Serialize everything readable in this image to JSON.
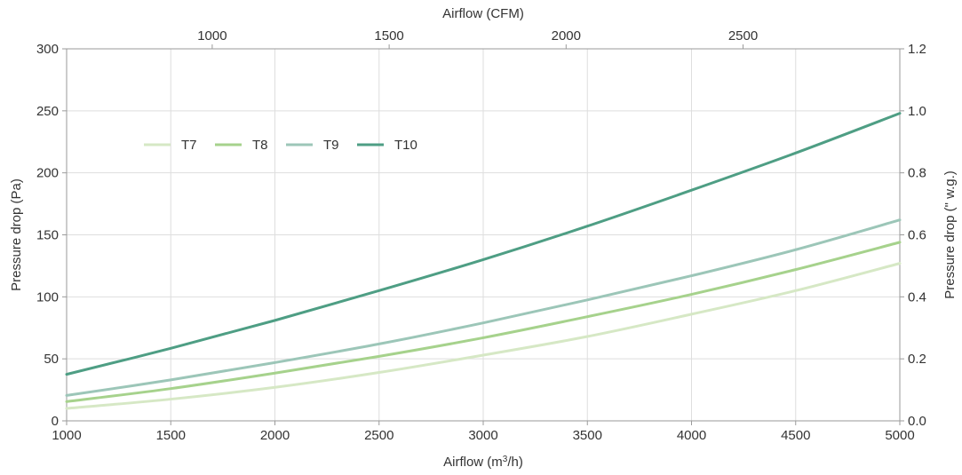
{
  "chart_data": {
    "type": "line",
    "x_axis": {
      "label_prefix": "Airflow (m",
      "label_sup": "3",
      "label_suffix": "/h)",
      "range": [
        1000,
        5000
      ],
      "ticks": [
        1000,
        1500,
        2000,
        2500,
        3000,
        3500,
        4000,
        4500,
        5000
      ]
    },
    "x2_axis": {
      "label": "Airflow (CFM)",
      "factor_from_primary": 0.5886,
      "ticks": [
        1000,
        1500,
        2000,
        2500
      ]
    },
    "y_axis": {
      "label": "Pressure drop (Pa)",
      "range": [
        0,
        300
      ],
      "ticks": [
        0,
        50,
        100,
        150,
        200,
        250,
        300
      ]
    },
    "y2_axis": {
      "label": "Pressure drop (\" w.g.)",
      "range": [
        0,
        1.2
      ],
      "ticks": [
        "0.0",
        "0.2",
        "0.4",
        "0.6",
        "0.8",
        "1.0",
        "1.2"
      ]
    },
    "grid": true,
    "legend_position": "top-left",
    "x": [
      1000,
      1500,
      2000,
      2500,
      3000,
      3500,
      4000,
      4500,
      5000
    ],
    "series": [
      {
        "name": "T7",
        "color": "#d6e8c5",
        "values": [
          10,
          17.5,
          27,
          39,
          53,
          68,
          86,
          105,
          127
        ]
      },
      {
        "name": "T8",
        "color": "#a6d28c",
        "values": [
          15.5,
          26,
          38.5,
          52,
          67,
          84,
          102,
          122,
          144
        ]
      },
      {
        "name": "T9",
        "color": "#9cc6b8",
        "values": [
          20.5,
          33,
          47,
          62,
          79,
          97.5,
          117,
          138,
          162
        ]
      },
      {
        "name": "T10",
        "color": "#4e9e84",
        "values": [
          37.5,
          58.5,
          81,
          105,
          130,
          157,
          186,
          216,
          248
        ]
      }
    ]
  }
}
